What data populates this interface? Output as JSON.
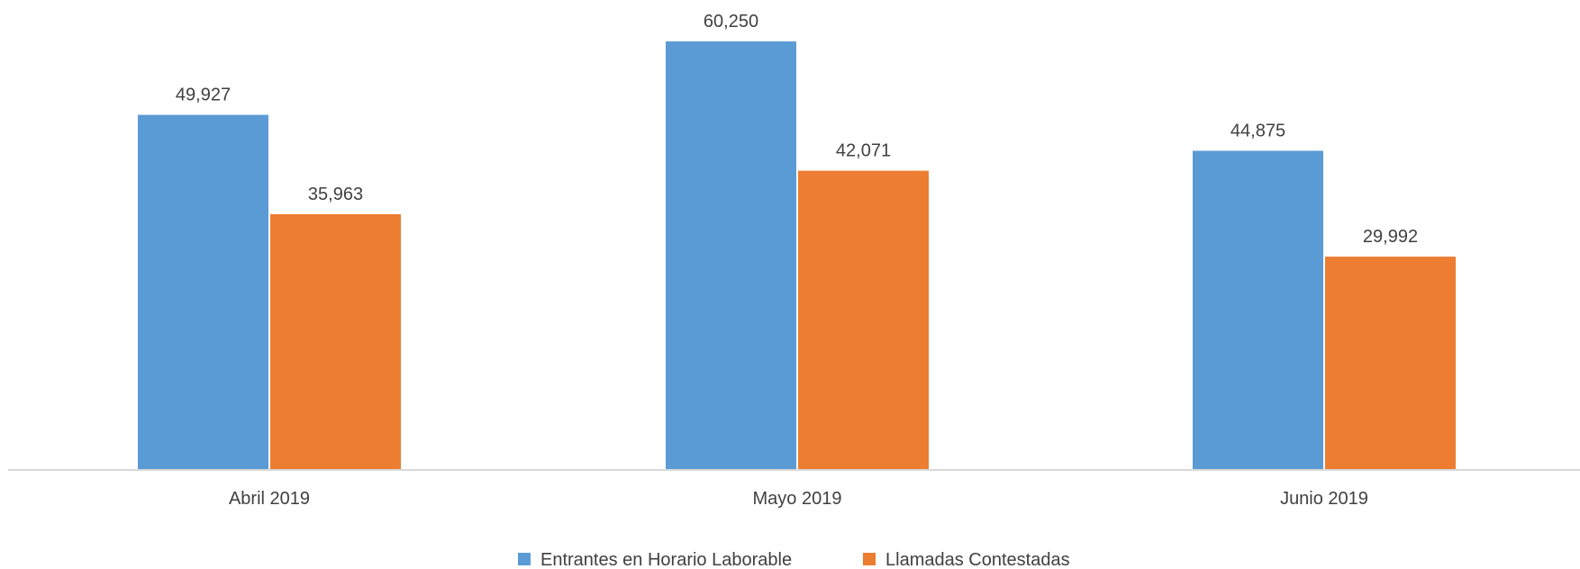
{
  "chart_data": {
    "type": "bar",
    "title": "",
    "xlabel": "",
    "ylabel": "",
    "categories": [
      "Abril 2019",
      "Mayo 2019",
      "Junio 2019"
    ],
    "series": [
      {
        "name": "Entrantes en Horario Laborable",
        "color": "#5B9BD5",
        "values": [
          49927,
          60250,
          44875
        ],
        "labels": [
          "49,927",
          "60,250",
          "44,875"
        ]
      },
      {
        "name": "Llamadas Contestadas",
        "color": "#ED7D31",
        "values": [
          35963,
          42071,
          29992
        ],
        "labels": [
          "35,963",
          "42,071",
          "29,992"
        ]
      }
    ],
    "ylim": [
      0,
      65000
    ],
    "grid": false,
    "legend_position": "bottom"
  }
}
